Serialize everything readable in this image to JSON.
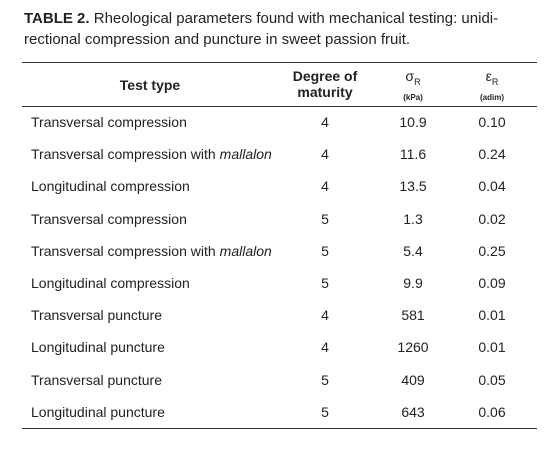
{
  "caption": {
    "label": "TABLE 2.",
    "lines": [
      "Rheological parameters found with mechanical testing: unidi-",
      "rectional compression and puncture in sweet passion fruit."
    ]
  },
  "table": {
    "header": {
      "test": "Test type",
      "degree": [
        "Degree of",
        "maturity"
      ],
      "stress": {
        "symbol": "σ",
        "subscript": "R",
        "unit": "(kPa)"
      },
      "strain": {
        "symbol": "ε",
        "subscript": "R",
        "unit": "(adim)"
      }
    },
    "rows": [
      {
        "test": "Transversal compression",
        "degree": "4",
        "stress": "10.9",
        "strain": "0.10"
      },
      {
        "test": "Transversal compression with",
        "test_italic": "mallalon",
        "degree": "4",
        "stress": "11.6",
        "strain": "0.24"
      },
      {
        "test": "Longitudinal compression",
        "degree": "4",
        "stress": "13.5",
        "strain": "0.04"
      },
      {
        "test": "Transversal compression",
        "degree": "5",
        "stress": "1.3",
        "strain": "0.02"
      },
      {
        "test": "Transversal compression with",
        "test_italic": "mallalon",
        "degree": "5",
        "stress": "5.4",
        "strain": "0.25"
      },
      {
        "test": "Longitudinal compression",
        "degree": "5",
        "stress": "9.9",
        "strain": "0.09"
      },
      {
        "test": "Transversal puncture",
        "degree": "4",
        "stress": "581",
        "strain": "0.01"
      },
      {
        "test": "Longitudinal puncture",
        "degree": "4",
        "stress": "1260",
        "strain": "0.01"
      },
      {
        "test": "Transversal puncture",
        "degree": "5",
        "stress": "409",
        "strain": "0.05"
      },
      {
        "test": "Longitudinal puncture",
        "degree": "5",
        "stress": "643",
        "strain": "0.06"
      }
    ]
  }
}
